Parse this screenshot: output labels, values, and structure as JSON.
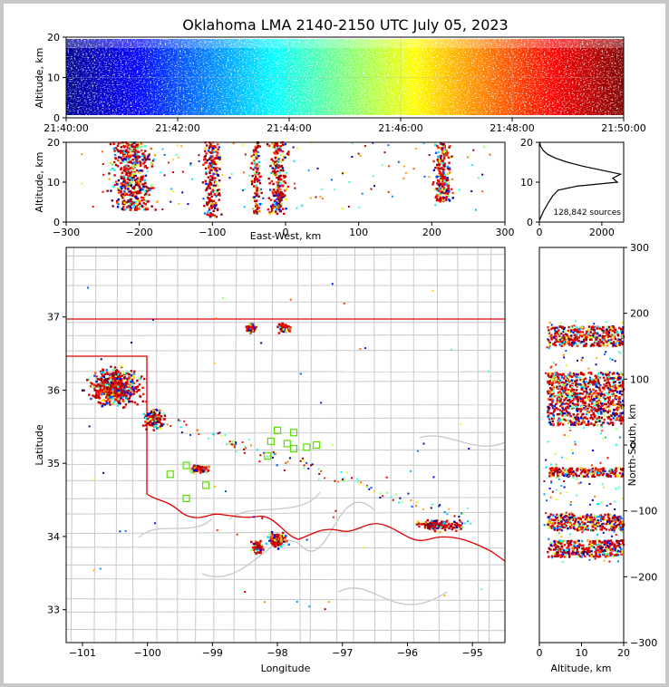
{
  "chart_data": [
    {
      "type": "scatter",
      "panel": "altitude-time",
      "title": "Oklahoma LMA 2140-2150 UTC July 05, 2023",
      "ylabel": "Altitude, km",
      "ylim": [
        0,
        20
      ],
      "yticks": [
        "0",
        "10",
        "20"
      ],
      "xticks": [
        "21:40:00",
        "21:42:00",
        "21:44:00",
        "21:46:00",
        "21:48:00",
        "21:50:00"
      ],
      "color_encoding": "time (blue to dark red)"
    },
    {
      "type": "scatter",
      "panel": "east-west-altitude",
      "xlabel": "East-West, km",
      "ylabel": "Altitude, km",
      "xlim": [
        -300,
        300
      ],
      "ylim": [
        0,
        20
      ],
      "xticks": [
        "−300",
        "−200",
        "−100",
        "0",
        "100",
        "200",
        "300"
      ],
      "yticks": [
        "0",
        "10",
        "20"
      ],
      "clusters": [
        {
          "x": -210,
          "width": 70,
          "alt": [
            3,
            20
          ]
        },
        {
          "x": -100,
          "width": 28,
          "alt": [
            1,
            20
          ]
        },
        {
          "x": -40,
          "width": 16,
          "alt": [
            2,
            20
          ]
        },
        {
          "x": -10,
          "width": 32,
          "alt": [
            2,
            20
          ]
        },
        {
          "x": 215,
          "width": 30,
          "alt": [
            5,
            20
          ]
        }
      ]
    },
    {
      "type": "line",
      "panel": "altitude-histogram",
      "xlim": [
        0,
        2700
      ],
      "ylim": [
        0,
        20
      ],
      "xticks": [
        "0",
        "2000"
      ],
      "yticks": [
        "0",
        "10",
        "20"
      ],
      "annotation": "128,842 sources",
      "profile": [
        {
          "alt": 0.5,
          "count": 10
        },
        {
          "alt": 1.5,
          "count": 60
        },
        {
          "alt": 3,
          "count": 150
        },
        {
          "alt": 5,
          "count": 300
        },
        {
          "alt": 6.5,
          "count": 420
        },
        {
          "alt": 8,
          "count": 600
        },
        {
          "alt": 9,
          "count": 1200
        },
        {
          "alt": 10,
          "count": 2500
        },
        {
          "alt": 11,
          "count": 2350
        },
        {
          "alt": 12,
          "count": 2600
        },
        {
          "alt": 13,
          "count": 2000
        },
        {
          "alt": 14,
          "count": 1400
        },
        {
          "alt": 15,
          "count": 900
        },
        {
          "alt": 16,
          "count": 520
        },
        {
          "alt": 17,
          "count": 260
        },
        {
          "alt": 18,
          "count": 120
        },
        {
          "alt": 19,
          "count": 40
        },
        {
          "alt": 20,
          "count": 10
        }
      ]
    },
    {
      "type": "scatter",
      "panel": "plan-view-map",
      "xlabel": "Longitude",
      "ylabel": "Latitude",
      "xlim": [
        -101.25,
        -94.5
      ],
      "ylim": [
        32.55,
        37.95
      ],
      "xticks": [
        "−101",
        "−100",
        "−99",
        "−98",
        "−97",
        "−96",
        "−95"
      ],
      "yticks": [
        "33",
        "34",
        "35",
        "36",
        "37"
      ],
      "clusters": [
        {
          "lon": -100.5,
          "lat": 36.05,
          "spread": [
            0.55,
            0.35
          ]
        },
        {
          "lon": -99.9,
          "lat": 35.6,
          "spread": [
            0.2,
            0.2
          ]
        },
        {
          "lon": -99.2,
          "lat": 34.92,
          "spread": [
            0.2,
            0.07
          ]
        },
        {
          "lon": -98.3,
          "lat": 33.85,
          "spread": [
            0.12,
            0.12
          ]
        },
        {
          "lon": -98.0,
          "lat": 33.95,
          "spread": [
            0.2,
            0.15
          ]
        },
        {
          "lon": -95.5,
          "lat": 34.15,
          "spread": [
            0.45,
            0.1
          ]
        },
        {
          "lon": -98.4,
          "lat": 36.85,
          "spread": [
            0.1,
            0.08
          ]
        },
        {
          "lon": -97.9,
          "lat": 36.85,
          "spread": [
            0.12,
            0.1
          ]
        }
      ],
      "stations": [
        {
          "lon": -98.0,
          "lat": 35.45
        },
        {
          "lon": -97.75,
          "lat": 35.42
        },
        {
          "lon": -98.1,
          "lat": 35.3
        },
        {
          "lon": -97.85,
          "lat": 35.27
        },
        {
          "lon": -97.55,
          "lat": 35.22
        },
        {
          "lon": -97.4,
          "lat": 35.25
        },
        {
          "lon": -98.15,
          "lat": 35.1
        },
        {
          "lon": -97.75,
          "lat": 35.2
        },
        {
          "lon": -99.4,
          "lat": 34.97
        },
        {
          "lon": -99.1,
          "lat": 34.7
        },
        {
          "lon": -99.4,
          "lat": 34.52
        },
        {
          "lon": -99.65,
          "lat": 34.85
        }
      ]
    },
    {
      "type": "scatter",
      "panel": "north-south-altitude",
      "xlabel": "Altitude, km",
      "ylabel": "North-South, km",
      "xlim": [
        0,
        20
      ],
      "ylim": [
        -300,
        300
      ],
      "xticks": [
        "0",
        "10",
        "20"
      ],
      "yticks": [
        "−300",
        "−200",
        "−100",
        "0",
        "100",
        "200",
        "300"
      ],
      "bands": [
        {
          "ns": [
            150,
            180
          ]
        },
        {
          "ns": [
            30,
            110
          ]
        },
        {
          "ns": [
            -48,
            -35
          ]
        },
        {
          "ns": [
            -130,
            -105
          ]
        },
        {
          "ns": [
            -170,
            -145
          ]
        }
      ]
    }
  ]
}
